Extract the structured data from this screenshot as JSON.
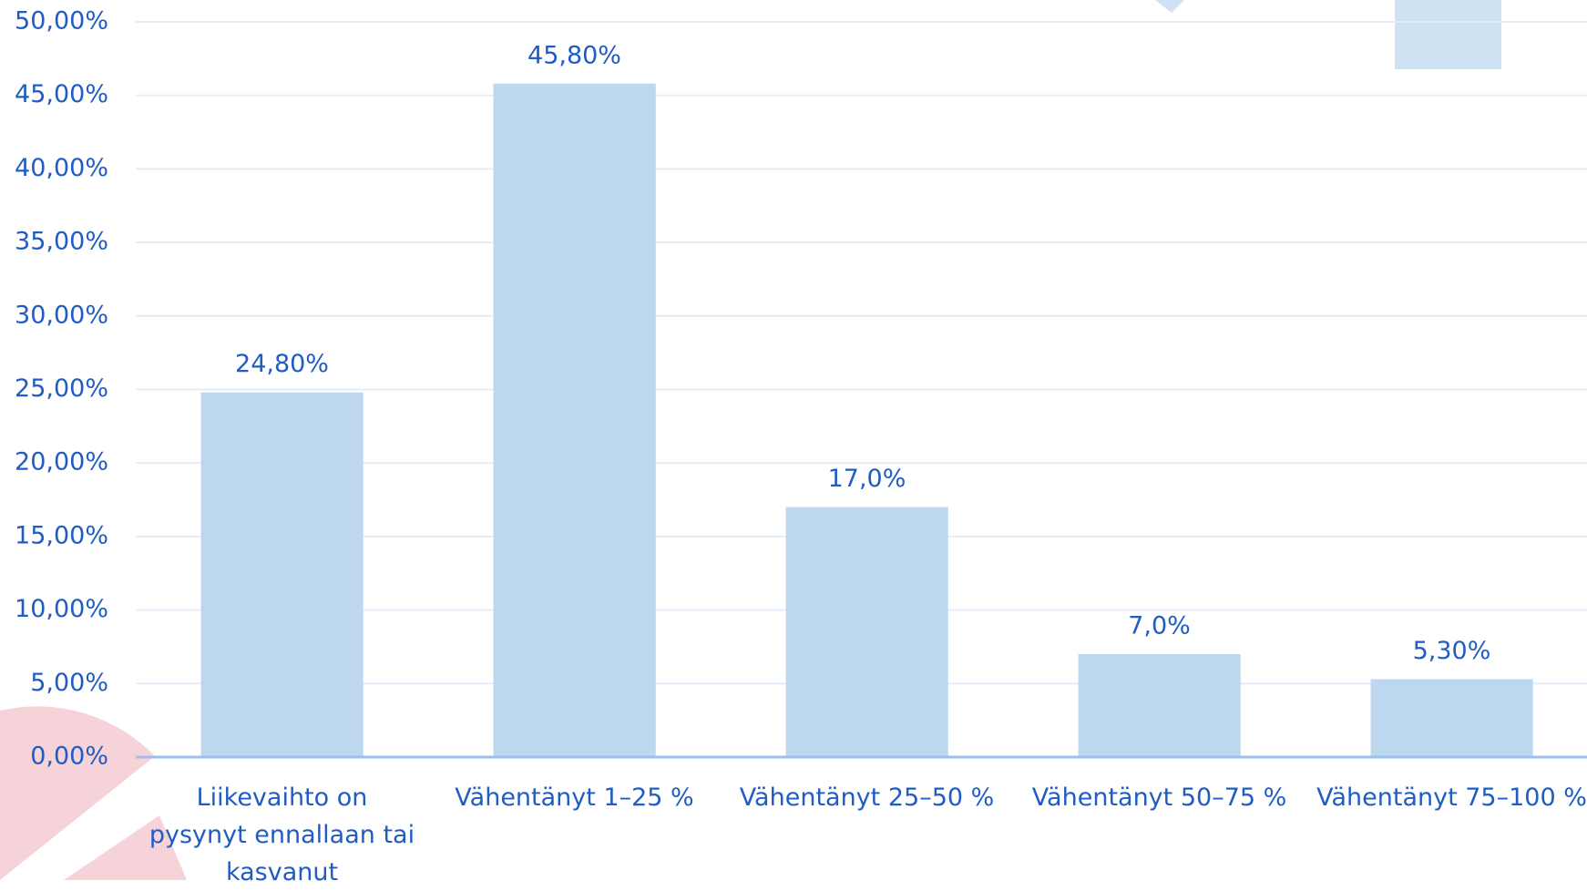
{
  "chart_data": {
    "type": "bar",
    "categories": [
      "Liikevaihto on pysynyt ennallaan tai kasvanut",
      "Vähentänyt 1–25 %",
      "Vähentänyt 25–50 %",
      "Vähentänyt 50–75 %",
      "Vähentänyt 75–100 %"
    ],
    "values": [
      24.8,
      45.8,
      17.0,
      7.0,
      5.3
    ],
    "value_labels": [
      "24,80%",
      "45,80%",
      "17,0%",
      "7,0%",
      "5,30%"
    ],
    "color": "#bdd7ee",
    "ylim": [
      0,
      50
    ],
    "yticks": [
      {
        "value": 0,
        "label": "0,00%"
      },
      {
        "value": 5,
        "label": "5,00%"
      },
      {
        "value": 10,
        "label": "10,00%"
      },
      {
        "value": 15,
        "label": "15,00%"
      },
      {
        "value": 20,
        "label": "20,00%"
      },
      {
        "value": 25,
        "label": "25,00%"
      },
      {
        "value": 30,
        "label": "30,00%"
      },
      {
        "value": 35,
        "label": "35,00%"
      },
      {
        "value": 40,
        "label": "40,00%"
      },
      {
        "value": 45,
        "label": "45,00%"
      },
      {
        "value": 50,
        "label": "50,00%"
      }
    ],
    "grid": true
  }
}
